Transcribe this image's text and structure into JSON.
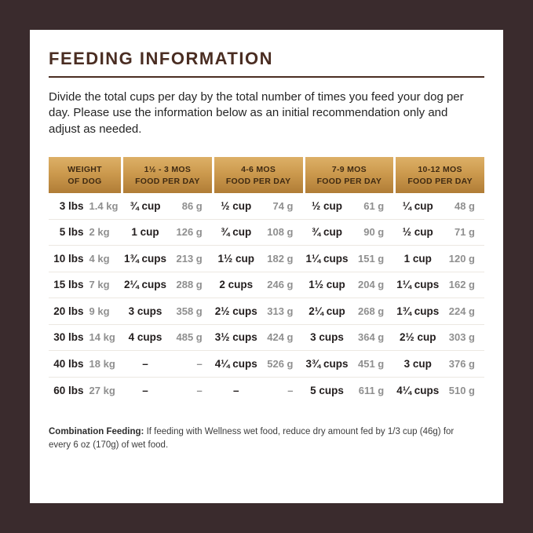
{
  "page": {
    "title": "FEEDING INFORMATION",
    "intro": "Divide the total cups per day by the total number of times you feed your dog per day. Please use the information below as an initial recommendation only and adjust as needed.",
    "note_label": "Combination Feeding:",
    "note_text": "If feeding with Wellness wet food, reduce dry amount fed by 1/3 cup (46g) for every 6 oz (170g) of wet food."
  },
  "colors": {
    "background": "#3a2b2d",
    "panel": "#ffffff",
    "title": "#4a2d22",
    "header_gold_top": "#ddb067",
    "header_gold_bottom": "#b07c36",
    "header_text": "#3f2a12",
    "value_text": "#221d1d",
    "muted_text": "#8f8f8f"
  },
  "table": {
    "headers": [
      {
        "line1": "WEIGHT",
        "line2": "OF DOG"
      },
      {
        "line1": "1½ - 3 MOS",
        "line2": "FOOD PER DAY"
      },
      {
        "line1": "4-6 MOS",
        "line2": "FOOD PER DAY"
      },
      {
        "line1": "7-9 MOS",
        "line2": "FOOD PER DAY"
      },
      {
        "line1": "10-12 MOS",
        "line2": "FOOD PER DAY"
      }
    ],
    "rows": [
      {
        "lbs": "3 lbs",
        "kg": "1.4 kg",
        "cells": [
          {
            "cups": "¾ cup",
            "g": "86 g"
          },
          {
            "cups": "½ cup",
            "g": "74 g"
          },
          {
            "cups": "½ cup",
            "g": "61 g"
          },
          {
            "cups": "¼ cup",
            "g": "48 g"
          }
        ]
      },
      {
        "lbs": "5 lbs",
        "kg": "2 kg",
        "cells": [
          {
            "cups": "1 cup",
            "g": "126 g"
          },
          {
            "cups": "¾ cup",
            "g": "108 g"
          },
          {
            "cups": "¾ cup",
            "g": "90 g"
          },
          {
            "cups": "½ cup",
            "g": "71 g"
          }
        ]
      },
      {
        "lbs": "10 lbs",
        "kg": "4 kg",
        "cells": [
          {
            "cups": "1¾ cups",
            "g": "213 g"
          },
          {
            "cups": "1½ cup",
            "g": "182 g"
          },
          {
            "cups": "1¼ cups",
            "g": "151 g"
          },
          {
            "cups": "1 cup",
            "g": "120 g"
          }
        ]
      },
      {
        "lbs": "15 lbs",
        "kg": "7 kg",
        "cells": [
          {
            "cups": "2¼ cups",
            "g": "288 g"
          },
          {
            "cups": "2 cups",
            "g": "246 g"
          },
          {
            "cups": "1½ cup",
            "g": "204 g"
          },
          {
            "cups": "1¼ cups",
            "g": "162 g"
          }
        ]
      },
      {
        "lbs": "20 lbs",
        "kg": "9 kg",
        "cells": [
          {
            "cups": "3 cups",
            "g": "358 g"
          },
          {
            "cups": "2½ cups",
            "g": "313 g"
          },
          {
            "cups": "2¼ cup",
            "g": "268 g"
          },
          {
            "cups": "1¾ cups",
            "g": "224 g"
          }
        ]
      },
      {
        "lbs": "30 lbs",
        "kg": "14 kg",
        "cells": [
          {
            "cups": "4 cups",
            "g": "485 g"
          },
          {
            "cups": "3½ cups",
            "g": "424 g"
          },
          {
            "cups": "3 cups",
            "g": "364 g"
          },
          {
            "cups": "2½ cup",
            "g": "303 g"
          }
        ]
      },
      {
        "lbs": "40 lbs",
        "kg": "18 kg",
        "cells": [
          {
            "cups": "–",
            "g": "–"
          },
          {
            "cups": "4¼ cups",
            "g": "526 g"
          },
          {
            "cups": "3¾ cups",
            "g": "451 g"
          },
          {
            "cups": "3 cup",
            "g": "376 g"
          }
        ]
      },
      {
        "lbs": "60 lbs",
        "kg": "27 kg",
        "cells": [
          {
            "cups": "–",
            "g": "–"
          },
          {
            "cups": "–",
            "g": "–"
          },
          {
            "cups": "5 cups",
            "g": "611 g"
          },
          {
            "cups": "4¼ cups",
            "g": "510 g"
          }
        ]
      }
    ]
  }
}
